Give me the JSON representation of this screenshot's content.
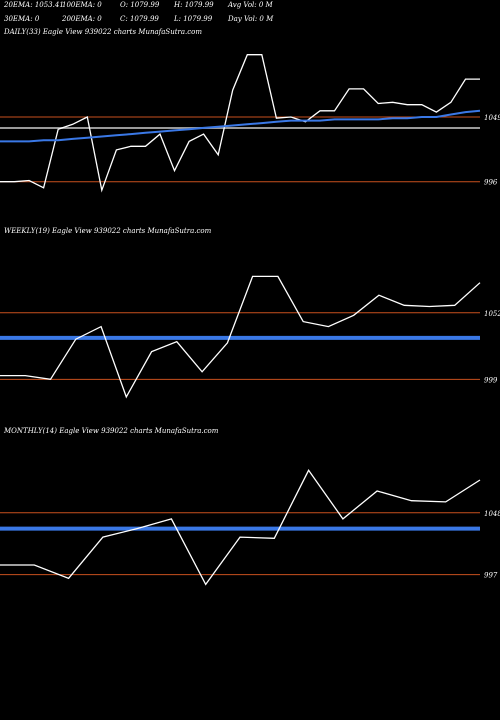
{
  "header": {
    "row1": [
      {
        "text": "20EMA: 1053.41"
      },
      {
        "text": "100EMA: 0"
      },
      {
        "text": "O: 1079.99"
      },
      {
        "text": "H: 1079.99"
      },
      {
        "text": "Avg Vol: 0  M"
      }
    ],
    "row2": [
      {
        "text": "30EMA: 0"
      },
      {
        "text": "200EMA: 0"
      },
      {
        "text": "C: 1079.99"
      },
      {
        "text": "L: 1079.99"
      },
      {
        "text": "Day Vol: 0  M"
      }
    ]
  },
  "colors": {
    "background": "#000000",
    "price_line": "#ffffff",
    "ema_line": "#3a78e6",
    "level_line": "#c8501e",
    "gray_line": "#9a9a9a"
  },
  "chart_data": [
    {
      "type": "line",
      "title": "DAILY(33) Eagle  View  939022  charts MunafaSutra.com",
      "ylim": [
        963,
        1112
      ],
      "levels": [
        1049,
        996
      ],
      "level_labels": [
        "1049",
        "996"
      ],
      "gray_level": 1040,
      "series": [
        {
          "values": [
            996,
            996,
            997,
            991,
            1039,
            1043,
            1049,
            989,
            1022,
            1025,
            1025,
            1035,
            1005,
            1029,
            1035,
            1018,
            1071,
            1100,
            1100,
            1048,
            1049,
            1045,
            1054,
            1054,
            1072,
            1072,
            1060,
            1061,
            1059,
            1059,
            1053,
            1061,
            1080,
            1080
          ]
        },
        {
          "values": [
            1029,
            1029,
            1029,
            1030,
            1030,
            1031,
            1032,
            1033,
            1034,
            1035,
            1036,
            1037,
            1038,
            1039,
            1040,
            1041,
            1042,
            1043,
            1044,
            1045,
            1046,
            1046,
            1046,
            1047,
            1047,
            1047,
            1047,
            1048,
            1048,
            1049,
            1049,
            1051,
            1053,
            1054
          ]
        }
      ]
    },
    {
      "type": "line",
      "title": "WEEKLY(19) Eagle  View  939022  charts MunafaSutra.com",
      "ylim": [
        965,
        1110
      ],
      "levels": [
        1052,
        1032,
        999
      ],
      "level_labels": [
        "1052",
        "",
        "999"
      ],
      "blue_level": 1032,
      "series": [
        {
          "values": [
            1002,
            1002,
            999,
            1031,
            1041,
            985,
            1021,
            1029,
            1005,
            1028,
            1081,
            1081,
            1045,
            1041,
            1050,
            1066,
            1058,
            1057,
            1058,
            1076
          ]
        }
      ]
    },
    {
      "type": "line",
      "title": "MONTHLY(14) Eagle  View  939022  charts MunafaSutra.com",
      "ylim": [
        958,
        1108
      ],
      "levels": [
        1048,
        1035,
        997
      ],
      "level_labels": [
        "1048",
        "",
        "997"
      ],
      "blue_level": 1035,
      "series": [
        {
          "values": [
            1005,
            1005,
            994,
            1028,
            1035,
            1043,
            989,
            1028,
            1027,
            1083,
            1043,
            1066,
            1058,
            1057,
            1075
          ]
        }
      ]
    }
  ]
}
